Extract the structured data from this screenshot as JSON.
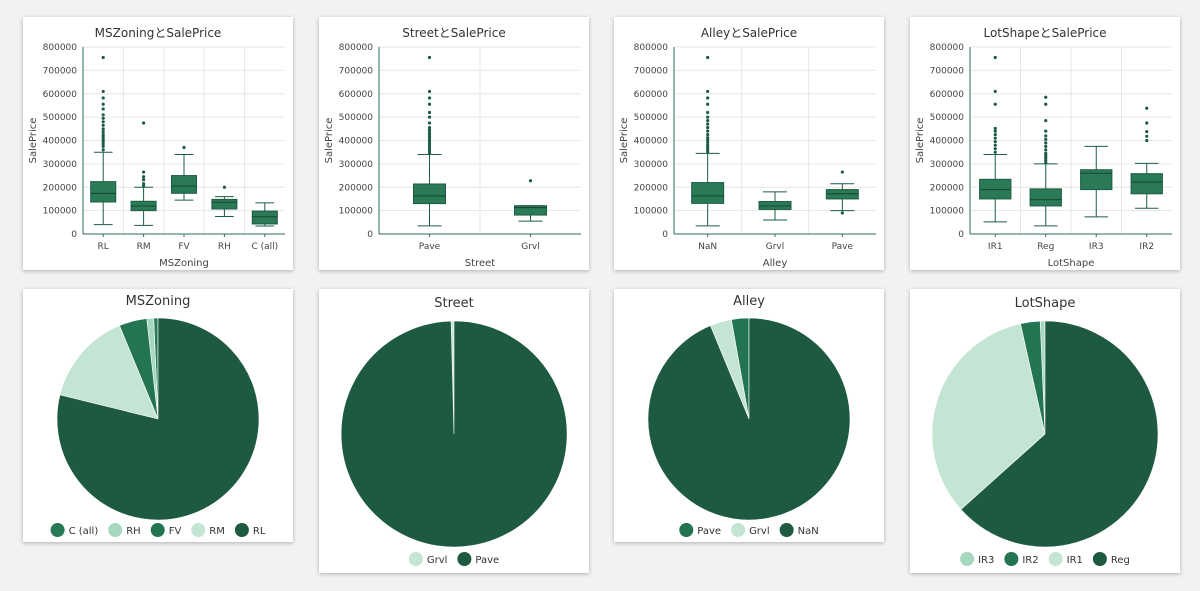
{
  "colors": {
    "box_fill": "#2a7a58",
    "box_stroke": "#1e5c42",
    "outlier": "#1e5c42",
    "grid": "#e6e6e6",
    "axis": "#2f6e52"
  },
  "boxplots": [
    {
      "title": "MSZoningとSalePrice",
      "xlabel": "MSZoning",
      "ylabel": "SalePrice",
      "ylim": [
        0,
        800000
      ],
      "yticks": [
        "0",
        "100000",
        "200000",
        "300000",
        "400000",
        "500000",
        "600000",
        "700000",
        "800000"
      ],
      "categories": [
        {
          "name": "RL",
          "whisker_low": 40000,
          "q1": 137000,
          "median": 174000,
          "q3": 224000,
          "whisker_high": 350000,
          "outliers": [
            360000,
            375000,
            385000,
            395000,
            405000,
            415000,
            425000,
            438000,
            450000,
            465000,
            480000,
            495000,
            510000,
            535000,
            555000,
            582000,
            610000,
            755000
          ]
        },
        {
          "name": "RM",
          "whisker_low": 37000,
          "q1": 100000,
          "median": 120000,
          "q3": 140000,
          "whisker_high": 200000,
          "outliers": [
            206000,
            215000,
            232000,
            245000,
            265000,
            475000
          ]
        },
        {
          "name": "FV",
          "whisker_low": 145000,
          "q1": 174000,
          "median": 205000,
          "q3": 250000,
          "whisker_high": 340000,
          "outliers": [
            370000
          ]
        },
        {
          "name": "RH",
          "whisker_low": 75000,
          "q1": 107000,
          "median": 136000,
          "q3": 148000,
          "whisker_high": 160000,
          "outliers": [
            200000
          ]
        },
        {
          "name": "C (all)",
          "whisker_low": 34000,
          "q1": 43000,
          "median": 74000,
          "q3": 98000,
          "whisker_high": 133000,
          "outliers": []
        }
      ]
    },
    {
      "title": "StreetとSalePrice",
      "xlabel": "Street",
      "ylabel": "SalePrice",
      "ylim": [
        0,
        800000
      ],
      "yticks": [
        "0",
        "100000",
        "200000",
        "300000",
        "400000",
        "500000",
        "600000",
        "700000",
        "800000"
      ],
      "categories": [
        {
          "name": "Pave",
          "whisker_low": 35000,
          "q1": 130000,
          "median": 163000,
          "q3": 214000,
          "whisker_high": 340000,
          "outliers": [
            345000,
            355000,
            365000,
            375000,
            385000,
            395000,
            405000,
            415000,
            425000,
            435000,
            445000,
            455000,
            475000,
            500000,
            520000,
            555000,
            582000,
            610000,
            755000
          ]
        },
        {
          "name": "Grvl",
          "whisker_low": 55000,
          "q1": 81000,
          "median": 113000,
          "q3": 121000,
          "whisker_high": 121000,
          "outliers": [
            228000
          ]
        }
      ]
    },
    {
      "title": "AlleyとSalePrice",
      "xlabel": "Alley",
      "ylabel": "SalePrice",
      "ylim": [
        0,
        800000
      ],
      "yticks": [
        "0",
        "100000",
        "200000",
        "300000",
        "400000",
        "500000",
        "600000",
        "700000",
        "800000"
      ],
      "categories": [
        {
          "name": "NaN",
          "whisker_low": 35000,
          "q1": 131000,
          "median": 163000,
          "q3": 220000,
          "whisker_high": 345000,
          "outliers": [
            352000,
            362000,
            372000,
            382000,
            392000,
            402000,
            412000,
            425000,
            440000,
            455000,
            470000,
            485000,
            500000,
            520000,
            555000,
            582000,
            610000,
            755000
          ]
        },
        {
          "name": "Grvl",
          "whisker_low": 60000,
          "q1": 105000,
          "median": 120000,
          "q3": 139000,
          "whisker_high": 180000,
          "outliers": []
        },
        {
          "name": "Pave",
          "whisker_low": 100000,
          "q1": 150000,
          "median": 172000,
          "q3": 190000,
          "whisker_high": 215000,
          "outliers": [
            90000,
            265000
          ]
        }
      ]
    },
    {
      "title": "LotShapeとSalePrice",
      "xlabel": "LotShape",
      "ylabel": "SalePrice",
      "ylim": [
        0,
        800000
      ],
      "yticks": [
        "0",
        "100000",
        "200000",
        "300000",
        "400000",
        "500000",
        "600000",
        "700000",
        "800000"
      ],
      "categories": [
        {
          "name": "IR1",
          "whisker_low": 52000,
          "q1": 150000,
          "median": 190000,
          "q3": 234000,
          "whisker_high": 340000,
          "outliers": [
            350000,
            365000,
            380000,
            395000,
            410000,
            425000,
            440000,
            452000,
            555000,
            610000,
            755000
          ]
        },
        {
          "name": "Reg",
          "whisker_low": 35000,
          "q1": 120000,
          "median": 147000,
          "q3": 193000,
          "whisker_high": 300000,
          "outliers": [
            305000,
            315000,
            325000,
            335000,
            345000,
            360000,
            375000,
            390000,
            405000,
            420000,
            440000,
            485000,
            555000,
            585000
          ]
        },
        {
          "name": "IR3",
          "whisker_low": 73000,
          "q1": 190000,
          "median": 260000,
          "q3": 275000,
          "whisker_high": 375000,
          "outliers": []
        },
        {
          "name": "IR2",
          "whisker_low": 110000,
          "q1": 172000,
          "median": 222000,
          "q3": 258000,
          "whisker_high": 302000,
          "outliers": [
            400000,
            418000,
            438000,
            475000,
            538000
          ]
        }
      ]
    }
  ],
  "pies": [
    {
      "title": "MSZoning",
      "slices": [
        {
          "label": "C (all)",
          "value": 10,
          "color": "#287a56"
        },
        {
          "label": "RH",
          "value": 16,
          "color": "#a6d8bf"
        },
        {
          "label": "FV",
          "value": 65,
          "color": "#237552"
        },
        {
          "label": "RM",
          "value": 218,
          "color": "#c4e5d4"
        },
        {
          "label": "RL",
          "value": 1151,
          "color": "#1d5a41"
        }
      ]
    },
    {
      "title": "Street",
      "slices": [
        {
          "label": "Grvl",
          "value": 6,
          "color": "#c4e5d4"
        },
        {
          "label": "Pave",
          "value": 1454,
          "color": "#1d5a41"
        }
      ]
    },
    {
      "title": "Alley",
      "slices": [
        {
          "label": "Pave",
          "value": 41,
          "color": "#237552"
        },
        {
          "label": "Grvl",
          "value": 50,
          "color": "#c4e5d4"
        },
        {
          "label": "NaN",
          "value": 1369,
          "color": "#1d5a41"
        }
      ]
    },
    {
      "title": "LotShape",
      "slices": [
        {
          "label": "IR3",
          "value": 10,
          "color": "#a6d8bf"
        },
        {
          "label": "IR2",
          "value": 41,
          "color": "#237552"
        },
        {
          "label": "IR1",
          "value": 484,
          "color": "#c4e5d4"
        },
        {
          "label": "Reg",
          "value": 925,
          "color": "#1d5a41"
        }
      ]
    }
  ],
  "chart_data": [
    {
      "type": "box",
      "title": "MSZoningとSalePrice",
      "xlabel": "MSZoning",
      "ylabel": "SalePrice",
      "categories": [
        "RL",
        "RM",
        "FV",
        "RH",
        "C (all)"
      ],
      "ylim": [
        0,
        800000
      ]
    },
    {
      "type": "box",
      "title": "StreetとSalePrice",
      "xlabel": "Street",
      "ylabel": "SalePrice",
      "categories": [
        "Pave",
        "Grvl"
      ],
      "ylim": [
        0,
        800000
      ]
    },
    {
      "type": "box",
      "title": "AlleyとSalePrice",
      "xlabel": "Alley",
      "ylabel": "SalePrice",
      "categories": [
        "NaN",
        "Grvl",
        "Pave"
      ],
      "ylim": [
        0,
        800000
      ]
    },
    {
      "type": "box",
      "title": "LotShapeとSalePrice",
      "xlabel": "LotShape",
      "ylabel": "SalePrice",
      "categories": [
        "IR1",
        "Reg",
        "IR3",
        "IR2"
      ],
      "ylim": [
        0,
        800000
      ]
    },
    {
      "type": "pie",
      "title": "MSZoning",
      "categories": [
        "C (all)",
        "RH",
        "FV",
        "RM",
        "RL"
      ],
      "values": [
        10,
        16,
        65,
        218,
        1151
      ],
      "legend": "bottom"
    },
    {
      "type": "pie",
      "title": "Street",
      "categories": [
        "Grvl",
        "Pave"
      ],
      "values": [
        6,
        1454
      ],
      "legend": "bottom"
    },
    {
      "type": "pie",
      "title": "Alley",
      "categories": [
        "Pave",
        "Grvl",
        "NaN"
      ],
      "values": [
        41,
        50,
        1369
      ],
      "legend": "bottom"
    },
    {
      "type": "pie",
      "title": "LotShape",
      "categories": [
        "IR3",
        "IR2",
        "IR1",
        "Reg"
      ],
      "values": [
        10,
        41,
        484,
        925
      ],
      "legend": "bottom"
    }
  ]
}
